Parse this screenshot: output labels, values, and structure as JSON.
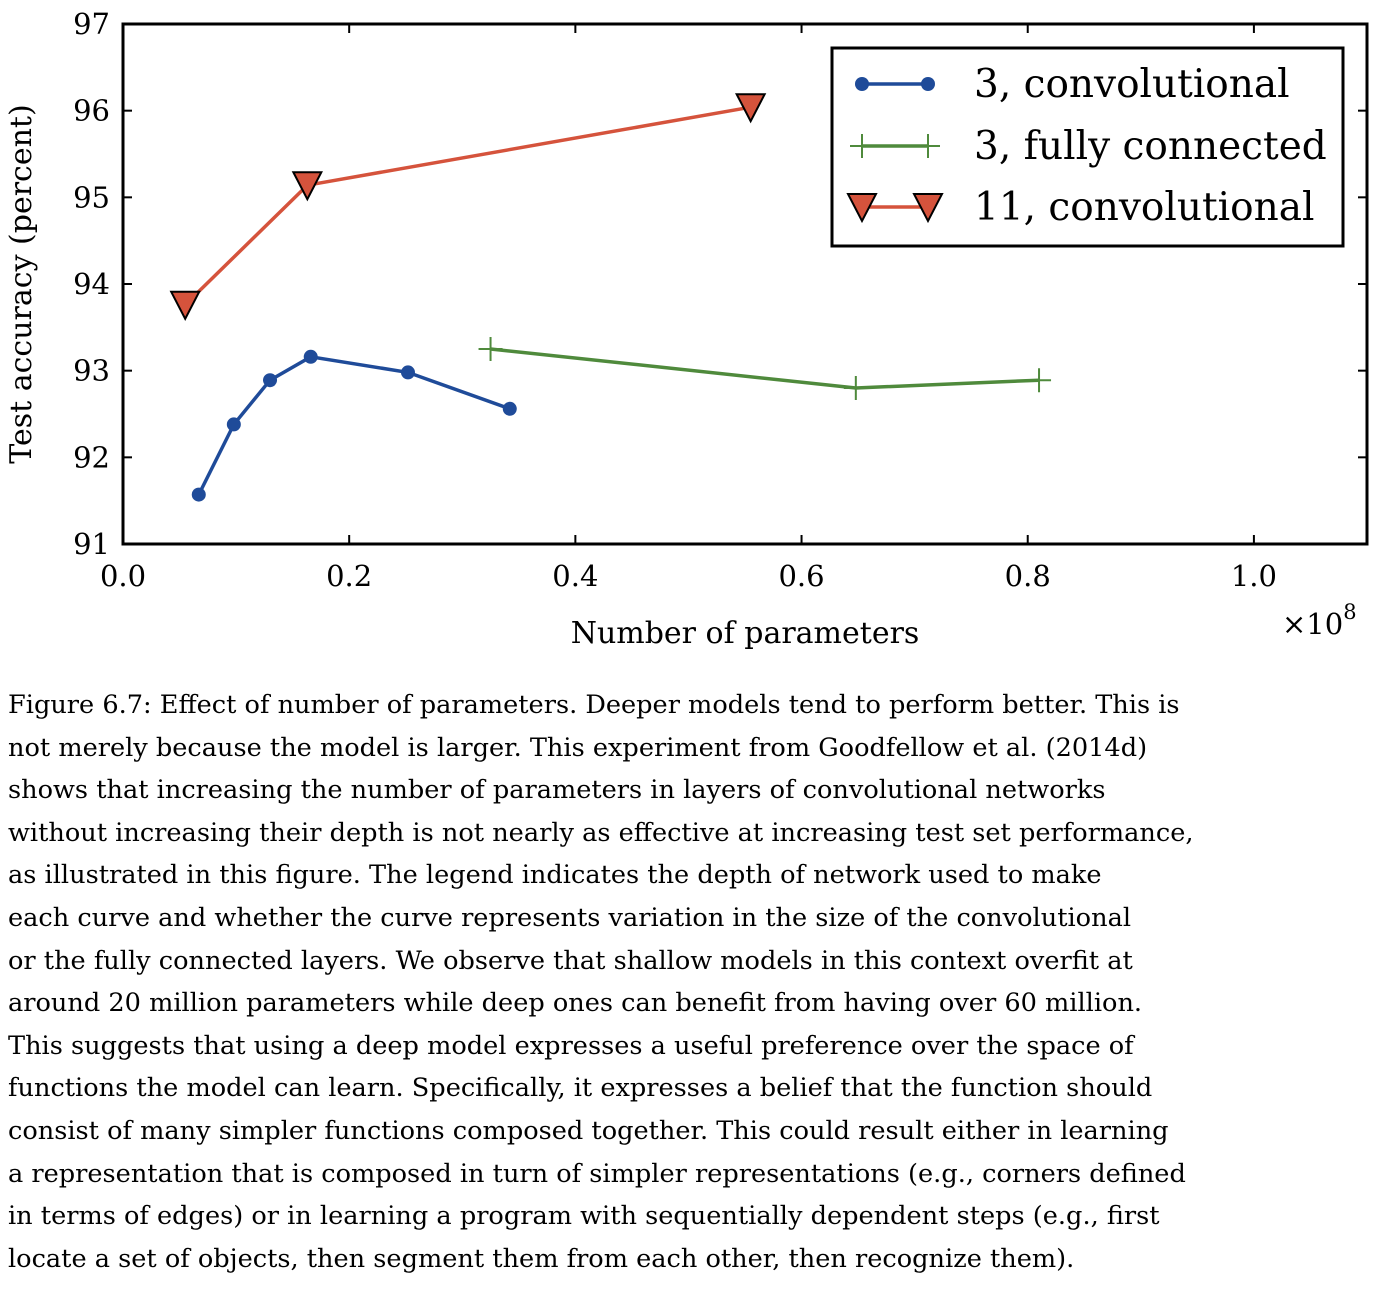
{
  "chart_data": {
    "type": "line",
    "xlabel": "Number of parameters",
    "ylabel": "Test accuracy (percent)",
    "x_multiplier": "×10",
    "x_multiplier_exponent": "8",
    "xlim": [
      0.0,
      1.1
    ],
    "ylim": [
      91,
      97
    ],
    "xticks": [
      0.0,
      0.2,
      0.4,
      0.6,
      0.8,
      1.0
    ],
    "xtick_labels": [
      "0.0",
      "0.2",
      "0.4",
      "0.6",
      "0.8",
      "1.0"
    ],
    "yticks": [
      91,
      92,
      93,
      94,
      95,
      96,
      97
    ],
    "ytick_labels": [
      "91",
      "92",
      "93",
      "94",
      "95",
      "96",
      "97"
    ],
    "grid": false,
    "legend_position": "top-right",
    "series": [
      {
        "name": "3, convolutional",
        "color": "#1f4b99",
        "marker": "circle",
        "x": [
          0.067,
          0.098,
          0.13,
          0.166,
          0.252,
          0.342
        ],
        "y": [
          91.57,
          92.38,
          92.89,
          93.16,
          92.98,
          92.56
        ]
      },
      {
        "name": "3, fully connected",
        "color": "#4f8a3c",
        "marker": "plus",
        "x": [
          0.325,
          0.648,
          0.81
        ],
        "y": [
          93.25,
          92.8,
          92.89
        ]
      },
      {
        "name": "11, convolutional",
        "color": "#d5533c",
        "marker": "triangle-down",
        "x": [
          0.055,
          0.163,
          0.555
        ],
        "y": [
          93.76,
          95.14,
          96.04
        ]
      }
    ]
  },
  "caption": {
    "lines": [
      "Figure 6.7: Effect of number of parameters. Deeper models tend to perform better. This is",
      "not merely because the model is larger. This experiment from Goodfellow et al. (2014d)",
      "shows that increasing the number of parameters in layers of convolutional networks",
      "without increasing their depth is not nearly as effective at increasing test set performance,",
      "as illustrated in this figure. The legend indicates the depth of network used to make",
      "each curve and whether the curve represents variation in the size of the convolutional",
      "or the fully connected layers. We observe that shallow models in this context overfit at",
      "around 20 million parameters while deep ones can benefit from having over 60 million.",
      "This suggests that using a deep model expresses a useful preference over the space of",
      "functions the model can learn. Specifically, it expresses a belief that the function should",
      "consist of many simpler functions composed together. This could result either in learning",
      "a representation that is composed in turn of simpler representations (e.g., corners defined",
      "in terms of edges) or in learning a program with sequentially dependent steps (e.g., first",
      "locate a set of objects, then segment them from each other, then recognize them)."
    ]
  }
}
